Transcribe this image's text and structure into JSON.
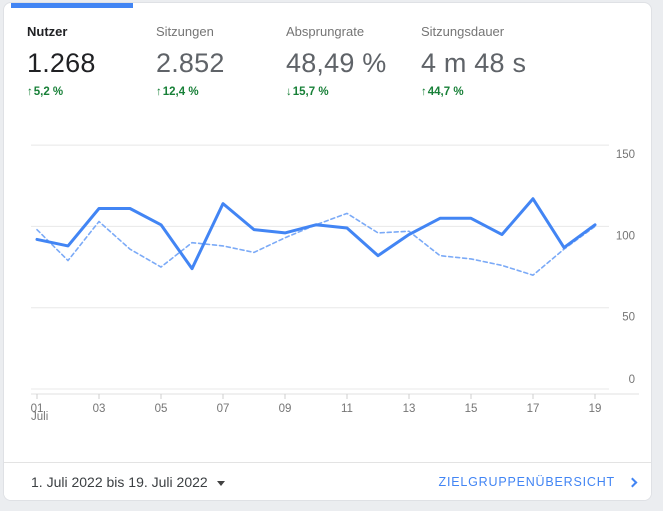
{
  "colors": {
    "accent_blue": "#4285f4",
    "line_current": "#4285f4",
    "line_previous": "#7baaf7",
    "positive_green": "#188038",
    "grid": "#e8e8e8",
    "axis_text": "#757575"
  },
  "metrics": [
    {
      "label": "Nutzer",
      "value": "1.268",
      "arrow": "↑",
      "direction": "up",
      "delta": "5,2 %",
      "selected": true
    },
    {
      "label": "Sitzungen",
      "value": "2.852",
      "arrow": "↑",
      "direction": "up",
      "delta": "12,4 %",
      "selected": false
    },
    {
      "label": "Absprungrate",
      "value": "48,49 %",
      "arrow": "↓",
      "direction": "down",
      "delta": "15,7 %",
      "selected": false
    },
    {
      "label": "Sitzungsdauer",
      "value": "4 m 48 s",
      "arrow": "↑",
      "direction": "up",
      "delta": "44,7 %",
      "selected": false
    }
  ],
  "chart_data": {
    "type": "line",
    "title": "",
    "x": [
      1,
      2,
      3,
      4,
      5,
      6,
      7,
      8,
      9,
      10,
      11,
      12,
      13,
      14,
      15,
      16,
      17,
      18,
      19
    ],
    "x_tick_labels": [
      "01",
      "03",
      "05",
      "07",
      "09",
      "11",
      "13",
      "15",
      "17",
      "19"
    ],
    "x_axis_secondary_label": "Juli",
    "series": [
      {
        "name": "current-period",
        "style": "solid",
        "values": [
          92,
          88,
          111,
          111,
          101,
          74,
          114,
          98,
          96,
          101,
          99,
          82,
          95,
          105,
          105,
          95,
          117,
          87,
          101
        ]
      },
      {
        "name": "previous-period",
        "style": "dashed",
        "values": [
          98,
          79,
          103,
          86,
          75,
          90,
          88,
          84,
          93,
          101,
          108,
          96,
          97,
          82,
          80,
          76,
          70,
          86,
          100
        ]
      }
    ],
    "y_ticks": [
      0,
      50,
      100,
      150
    ],
    "ylim": [
      0,
      160
    ],
    "grid": true,
    "legend": "none",
    "y_axis_position": "right"
  },
  "footer": {
    "date_range": "1. Juli 2022 bis 19. Juli 2022",
    "link_label": "ZIELGRUPPENÜBERSICHT"
  }
}
